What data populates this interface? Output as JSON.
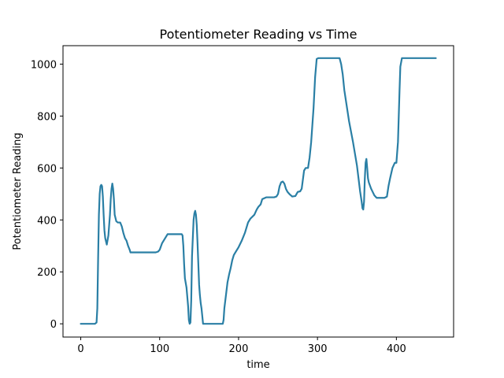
{
  "chart_data": {
    "type": "line",
    "title": "Potentiometer Reading vs Time",
    "xlabel": "time",
    "ylabel": "Potentiometer Reading",
    "xlim": [
      -22.5,
      472.5
    ],
    "ylim": [
      -51,
      1071
    ],
    "x_ticks": [
      0,
      100,
      200,
      300,
      400
    ],
    "y_ticks": [
      0,
      200,
      400,
      600,
      800,
      1000
    ],
    "grid": false,
    "legend": "none",
    "series": [
      {
        "color": "#2a7fa5",
        "x": [
          0,
          18,
          20,
          21,
          22,
          23,
          24,
          25,
          26,
          27,
          28,
          29,
          30,
          31,
          33,
          35,
          37,
          38,
          39,
          40,
          41,
          42,
          43,
          45,
          47,
          50,
          52,
          54,
          56,
          58,
          60,
          62,
          63,
          65,
          75,
          85,
          95,
          98,
          100,
          103,
          110,
          120,
          128,
          129,
          130,
          131,
          132,
          134,
          136,
          137,
          138,
          139,
          140,
          141,
          142,
          143,
          144,
          145,
          146,
          147,
          148,
          149,
          150,
          151,
          152,
          153,
          154,
          155,
          156,
          158,
          160,
          165,
          175,
          180,
          181,
          182,
          184,
          186,
          188,
          190,
          192,
          194,
          197,
          200,
          204,
          208,
          210,
          212,
          215,
          220,
          223,
          225,
          228,
          230,
          235,
          240,
          245,
          248,
          250,
          252,
          254,
          256,
          258,
          260,
          262,
          265,
          268,
          272,
          275,
          278,
          280,
          283,
          285,
          288,
          290,
          292,
          295,
          297,
          299,
          301,
          310,
          320,
          328,
          330,
          332,
          334,
          337,
          340,
          345,
          350,
          352,
          354,
          356,
          357,
          358,
          359,
          360,
          361,
          362,
          363,
          364,
          365,
          368,
          372,
          375,
          380,
          385,
          388,
          390,
          392,
          395,
          398,
          400,
          402,
          404,
          405,
          407,
          410,
          430,
          450
        ],
        "y": [
          0,
          0,
          5,
          60,
          250,
          420,
          500,
          530,
          535,
          530,
          490,
          420,
          360,
          330,
          305,
          340,
          420,
          480,
          520,
          540,
          520,
          480,
          420,
          395,
          390,
          390,
          375,
          350,
          330,
          320,
          300,
          285,
          275,
          275,
          275,
          275,
          275,
          278,
          285,
          310,
          345,
          345,
          345,
          340,
          300,
          230,
          175,
          140,
          70,
          15,
          0,
          5,
          90,
          260,
          330,
          400,
          425,
          435,
          420,
          380,
          310,
          230,
          150,
          110,
          80,
          60,
          30,
          0,
          0,
          0,
          0,
          0,
          0,
          0,
          15,
          60,
          110,
          160,
          190,
          215,
          245,
          265,
          280,
          295,
          320,
          350,
          370,
          390,
          405,
          420,
          440,
          450,
          460,
          480,
          487,
          487,
          487,
          490,
          500,
          530,
          545,
          548,
          540,
          520,
          508,
          498,
          490,
          492,
          508,
          510,
          520,
          590,
          600,
          600,
          640,
          700,
          830,
          950,
          1020,
          1023,
          1023,
          1023,
          1023,
          1000,
          960,
          900,
          840,
          780,
          700,
          610,
          560,
          510,
          470,
          445,
          440,
          470,
          560,
          620,
          635,
          600,
          560,
          545,
          520,
          495,
          485,
          485,
          485,
          490,
          530,
          560,
          600,
          620,
          620,
          700,
          900,
          990,
          1023,
          1023,
          1023,
          1023
        ]
      }
    ]
  }
}
